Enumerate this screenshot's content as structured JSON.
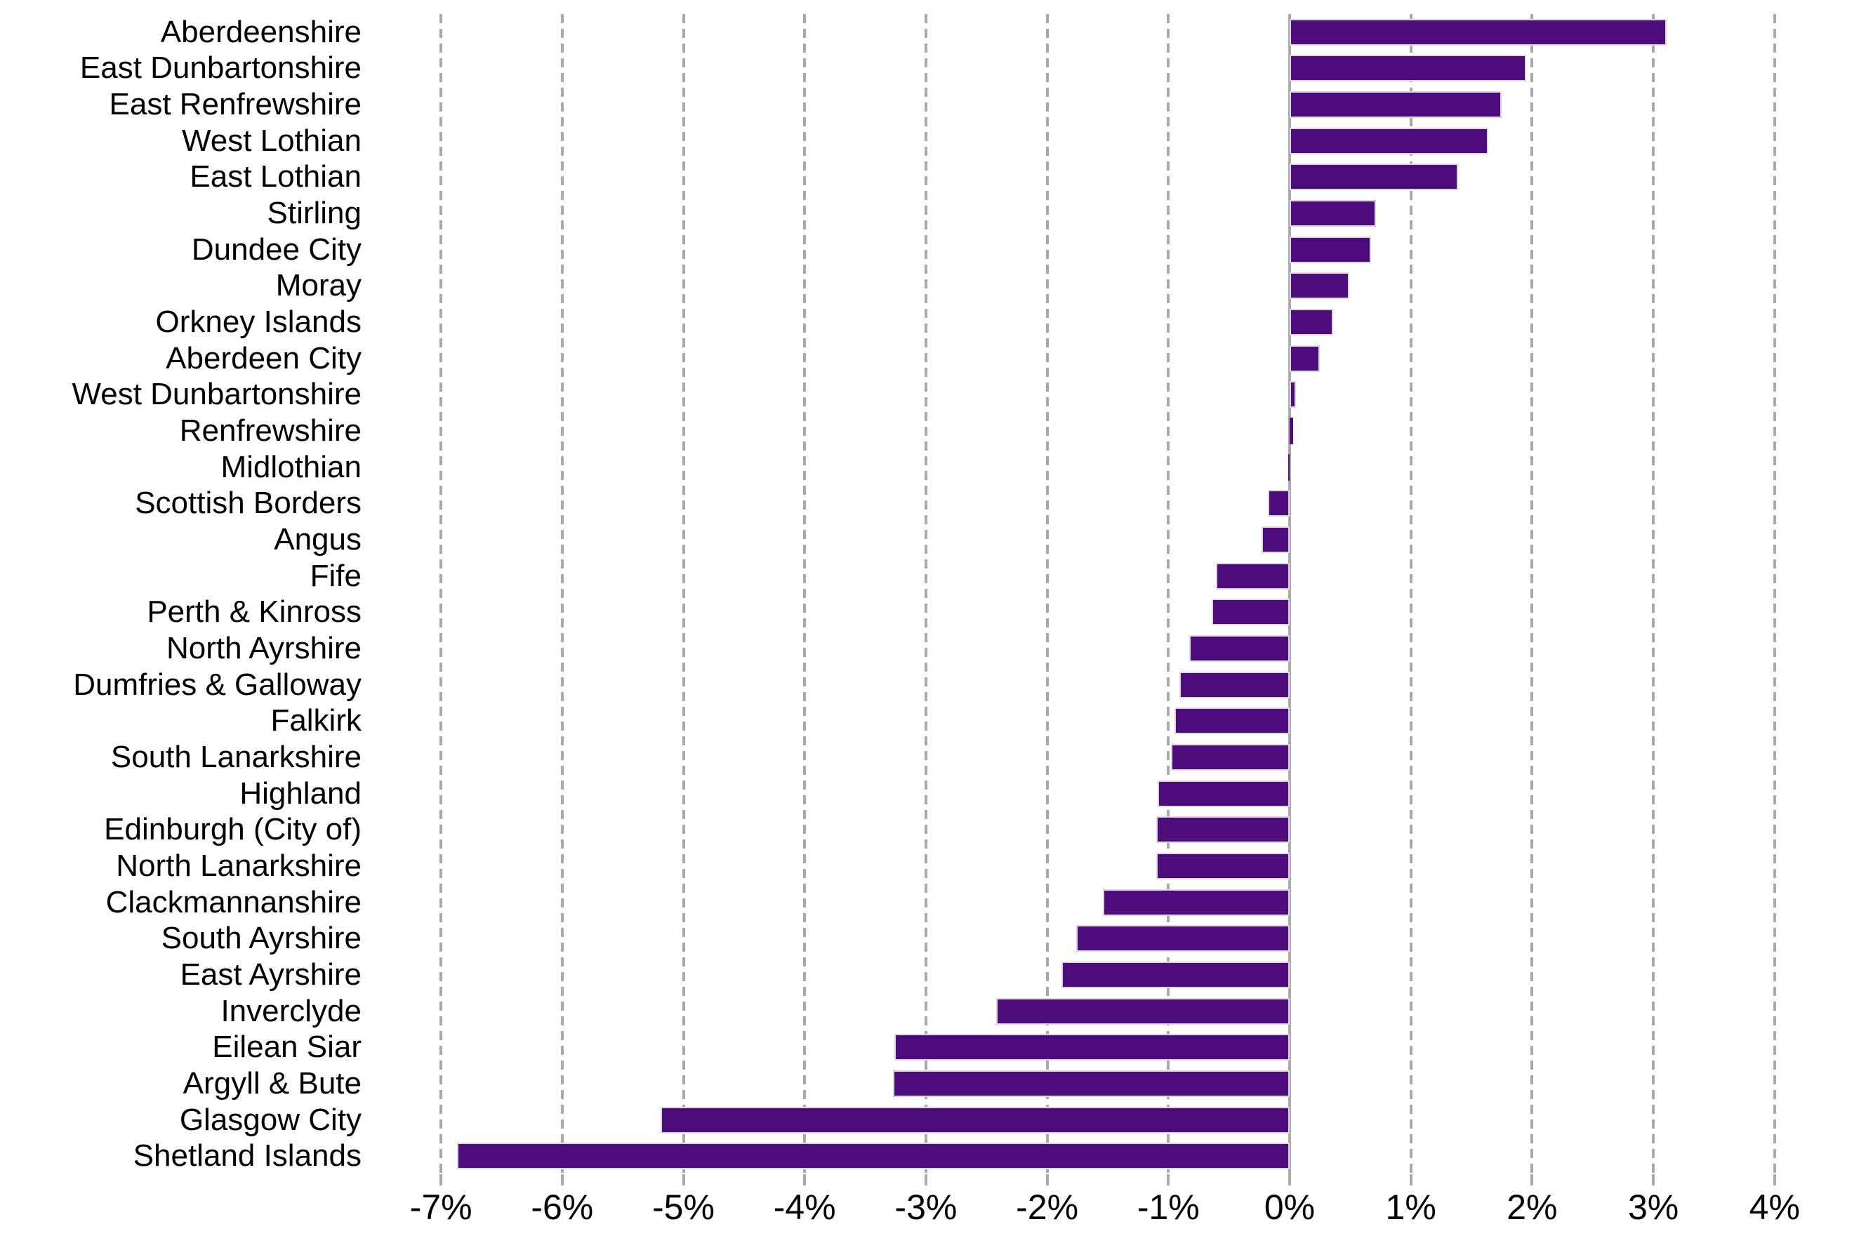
{
  "chart_data": {
    "type": "bar",
    "orientation": "horizontal",
    "title": "",
    "xlabel": "",
    "ylabel": "",
    "value_unit": "%",
    "xlim": [
      -7.4,
      4.8
    ],
    "x_ticks": [
      -7,
      -6,
      -5,
      -4,
      -3,
      -2,
      -1,
      0,
      1,
      2,
      3,
      4
    ],
    "x_tick_labels": [
      "-7%",
      "-6%",
      "-5%",
      "-4%",
      "-3%",
      "-2%",
      "-1%",
      "0%",
      "1%",
      "2%",
      "3%",
      "4%"
    ],
    "grid": "vertical-dashed",
    "zero_line": "solid",
    "legend_position": "none",
    "categories": [
      "Aberdeenshire",
      "East Dunbartonshire",
      "East Renfrewshire",
      "West Lothian",
      "East Lothian",
      "Stirling",
      "Dundee City",
      "Moray",
      "Orkney Islands",
      "Aberdeen City",
      "West Dunbartonshire",
      "Renfrewshire",
      "Midlothian",
      "Scottish Borders",
      "Angus",
      "Fife",
      "Perth & Kinross",
      "North Ayrshire",
      "Dumfries & Galloway",
      "Falkirk",
      "South Lanarkshire",
      "Highland",
      "Edinburgh (City of)",
      "North Lanarkshire",
      "Clackmannanshire",
      "South Ayrshire",
      "East Ayrshire",
      "Inverclyde",
      "Eilean Siar",
      "Argyll & Bute",
      "Glasgow City",
      "Shetland Islands"
    ],
    "values": [
      3.11,
      1.95,
      1.75,
      1.64,
      1.39,
      0.71,
      0.67,
      0.49,
      0.36,
      0.25,
      0.05,
      0.03,
      -0.01,
      -0.18,
      -0.23,
      -0.61,
      -0.64,
      -0.83,
      -0.91,
      -0.95,
      -0.98,
      -1.09,
      -1.1,
      -1.1,
      -1.54,
      -1.76,
      -1.88,
      -2.42,
      -3.26,
      -3.27,
      -5.19,
      -6.87
    ],
    "colors": {
      "bar": "#4d0b7c",
      "bar_border": "#d9d9d9",
      "gridline": "#a9a9a9",
      "zero_line": "#ababab",
      "text": "#000000",
      "background": "#ffffff"
    }
  }
}
